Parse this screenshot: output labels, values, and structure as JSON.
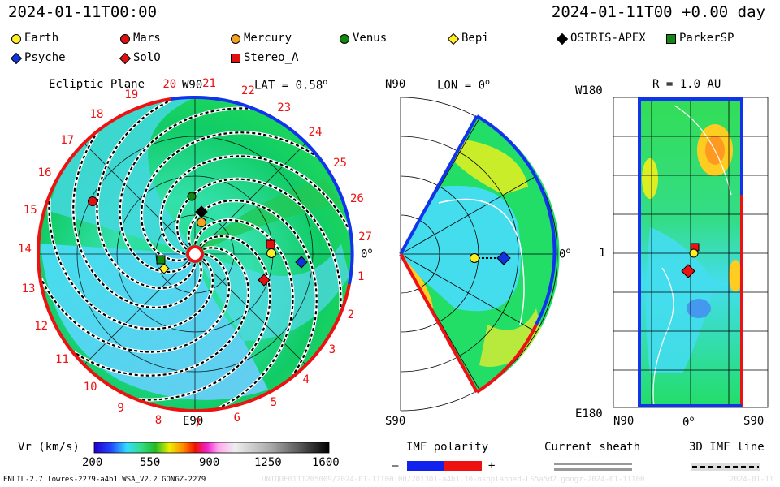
{
  "header": {
    "timestamp": "2024-01-11T00:00",
    "rel_time": "2024-01-11T00 +0.00 day"
  },
  "legend": [
    {
      "name": "Earth",
      "marker": "circle",
      "color": "#ffee22"
    },
    {
      "name": "Mars",
      "marker": "circle",
      "color": "#e01010"
    },
    {
      "name": "Mercury",
      "marker": "circle",
      "color": "#f5a020"
    },
    {
      "name": "Venus",
      "marker": "circle",
      "color": "#118811"
    },
    {
      "name": "Bepi",
      "marker": "diamond",
      "color": "#ffee22"
    },
    {
      "name": "OSIRIS-APEX",
      "marker": "diamond",
      "color": "#000000"
    },
    {
      "name": "ParkerSP",
      "marker": "square",
      "color": "#118811"
    },
    {
      "name": "Psyche",
      "marker": "diamond",
      "color": "#1133dd"
    },
    {
      "name": "SolO",
      "marker": "diamond",
      "color": "#e01010"
    },
    {
      "name": "Stereo_A",
      "marker": "square",
      "color": "#e01010"
    }
  ],
  "ecliptic": {
    "title": "Ecliptic Plane",
    "lat_label": "LAT = 0.58",
    "lat_deg": "o",
    "top_label": "W90",
    "bottom_label": "E90",
    "right_label": "0",
    "right_deg": "o",
    "carrington_labels": [
      "1",
      "2",
      "3",
      "4",
      "5",
      "6",
      "7",
      "8",
      "9",
      "10",
      "11",
      "12",
      "13",
      "14",
      "15",
      "16",
      "17",
      "18",
      "19",
      "20",
      "21",
      "22",
      "23",
      "24",
      "25",
      "26",
      "27"
    ]
  },
  "meridional": {
    "title": "LON = 0",
    "title_deg": "o",
    "top_label": "N90",
    "bottom_label": "S90",
    "right_label": "0",
    "right_deg": "o"
  },
  "synoptic": {
    "title": "R = 1.0 AU",
    "top_label": "W180",
    "mid_label": "1",
    "bottom_label": "E180",
    "x_labels": [
      "N90",
      "0",
      "S90"
    ],
    "x_deg": "o"
  },
  "colorbar": {
    "label": "Vr (km/s)",
    "ticks": [
      "200",
      "550",
      "900",
      "1250",
      "1600"
    ],
    "vmin": 200,
    "vmax": 1600
  },
  "imf": {
    "title": "IMF polarity",
    "minus": "–",
    "plus": "+",
    "negative_color": "#1122ee",
    "positive_color": "#ee1111"
  },
  "sheath": {
    "title": "Current sheath"
  },
  "imf3d": {
    "title": "3D IMF line"
  },
  "footer": {
    "model": "ENLIL-2.7 lowres-2279-a4b1 WSA_V2.2 GONGZ-2279",
    "run": "UNIQUE0111205009/2024-01-11T00:00/201301-a4b1.10-nsoplanned-LS5a5d2.gongz-2024-01-11T00",
    "time": "2024-01-11"
  }
}
